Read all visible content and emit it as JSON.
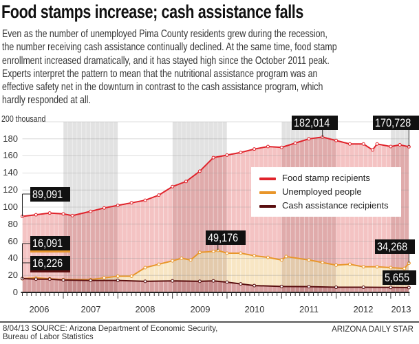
{
  "title": "Food stamps increase; cash assistance falls",
  "description_lines": [
    "Even as the number of unemployed Pima County residents grew during the recession,",
    "the number receiving cash assistance continually declined. At the same time, food stamp",
    "enrollment increased dramatically, and it has stayed high since the October 2011 peak.",
    "Experts interpret the pattern to mean that the nutritional assistance program was an",
    "effective safety net in the downturn in contrast to the cash assistance program, which",
    "hardly responded at all."
  ],
  "footer": {
    "source_line1": "8/04/13  SOURCE: Arizona Department of Economic Security,",
    "source_line2": "Bureau of Labor Statistics",
    "credit": "ARIZONA DAILY STAR"
  },
  "chart_data": {
    "type": "area",
    "ylabel": "200 thousand",
    "ylim": [
      0,
      200
    ],
    "yticks": [
      "0",
      "20",
      "40",
      "60",
      "80",
      "100",
      "120",
      "140",
      "160",
      "180"
    ],
    "xticks": [
      "2006",
      "2007",
      "2008",
      "2009",
      "2010",
      "2011",
      "2012",
      "2013"
    ],
    "grid": true,
    "legend_position": "right",
    "shaded_years": [
      "2007",
      "2009",
      "2011",
      "2013"
    ],
    "series": [
      {
        "name": "Food stamp recipients",
        "color": "#e0232b",
        "fill": "#f4c3c3",
        "points": [
          [
            "2006-04",
            89.091
          ],
          [
            "2006-07",
            91
          ],
          [
            "2006-10",
            93
          ],
          [
            "2007-01",
            92
          ],
          [
            "2007-03",
            90
          ],
          [
            "2007-07",
            95
          ],
          [
            "2007-10",
            99
          ],
          [
            "2008-01",
            102
          ],
          [
            "2008-04",
            105
          ],
          [
            "2008-07",
            108
          ],
          [
            "2008-10",
            114
          ],
          [
            "2009-01",
            124
          ],
          [
            "2009-04",
            130
          ],
          [
            "2009-07",
            142
          ],
          [
            "2009-10",
            158
          ],
          [
            "2010-01",
            161
          ],
          [
            "2010-04",
            164
          ],
          [
            "2010-07",
            168
          ],
          [
            "2010-10",
            171
          ],
          [
            "2011-01",
            170
          ],
          [
            "2011-04",
            175
          ],
          [
            "2011-07",
            180
          ],
          [
            "2011-10",
            182.014
          ],
          [
            "2012-01",
            178
          ],
          [
            "2012-04",
            174
          ],
          [
            "2012-07",
            174
          ],
          [
            "2012-09",
            167
          ],
          [
            "2012-10",
            174
          ],
          [
            "2013-01",
            171
          ],
          [
            "2013-03",
            173
          ],
          [
            "2013-05",
            170.728
          ]
        ]
      },
      {
        "name": "Unemployed people",
        "color": "#e8962a",
        "fill": "#f8e6c4",
        "points": [
          [
            "2006-04",
            16.091
          ],
          [
            "2006-07",
            17
          ],
          [
            "2006-10",
            16
          ],
          [
            "2007-01",
            15
          ],
          [
            "2007-07",
            15
          ],
          [
            "2007-10",
            17
          ],
          [
            "2008-01",
            19
          ],
          [
            "2008-04",
            19
          ],
          [
            "2008-07",
            29
          ],
          [
            "2008-10",
            33
          ],
          [
            "2009-01",
            37
          ],
          [
            "2009-03",
            40
          ],
          [
            "2009-05",
            38
          ],
          [
            "2009-07",
            47
          ],
          [
            "2009-10",
            48
          ],
          [
            "2009-11",
            49.176
          ],
          [
            "2010-01",
            46
          ],
          [
            "2010-04",
            46
          ],
          [
            "2010-07",
            43
          ],
          [
            "2010-10",
            41
          ],
          [
            "2011-01",
            38
          ],
          [
            "2011-02",
            42
          ],
          [
            "2011-07",
            38
          ],
          [
            "2011-10",
            35
          ],
          [
            "2012-01",
            32
          ],
          [
            "2012-04",
            33
          ],
          [
            "2012-07",
            30
          ],
          [
            "2012-10",
            30
          ],
          [
            "2013-01",
            29
          ],
          [
            "2013-04",
            28
          ],
          [
            "2013-05",
            34.268
          ]
        ]
      },
      {
        "name": "Cash assistance recipients",
        "color": "#5a0f10",
        "fill": "#d9a0a0",
        "points": [
          [
            "2006-04",
            16.226
          ],
          [
            "2006-07",
            15.5
          ],
          [
            "2006-10",
            15.5
          ],
          [
            "2007-01",
            14.5
          ],
          [
            "2007-07",
            14
          ],
          [
            "2008-01",
            14
          ],
          [
            "2008-07",
            13
          ],
          [
            "2009-01",
            13.5
          ],
          [
            "2009-07",
            13
          ],
          [
            "2009-10",
            13.5
          ],
          [
            "2010-01",
            12
          ],
          [
            "2010-04",
            10
          ],
          [
            "2010-07",
            8
          ],
          [
            "2011-01",
            7
          ],
          [
            "2011-07",
            6.8
          ],
          [
            "2012-01",
            6
          ],
          [
            "2012-07",
            6
          ],
          [
            "2013-01",
            5.8
          ],
          [
            "2013-05",
            5.655
          ]
        ]
      }
    ],
    "annotations": {
      "food_start": "89,091",
      "unemployed_start": "16,091",
      "cash_start": "16,226",
      "unemployed_peak": "49,176",
      "food_peak": "182,014",
      "food_end": "170,728",
      "unemployed_end": "34,268",
      "cash_end": "5,655"
    }
  }
}
